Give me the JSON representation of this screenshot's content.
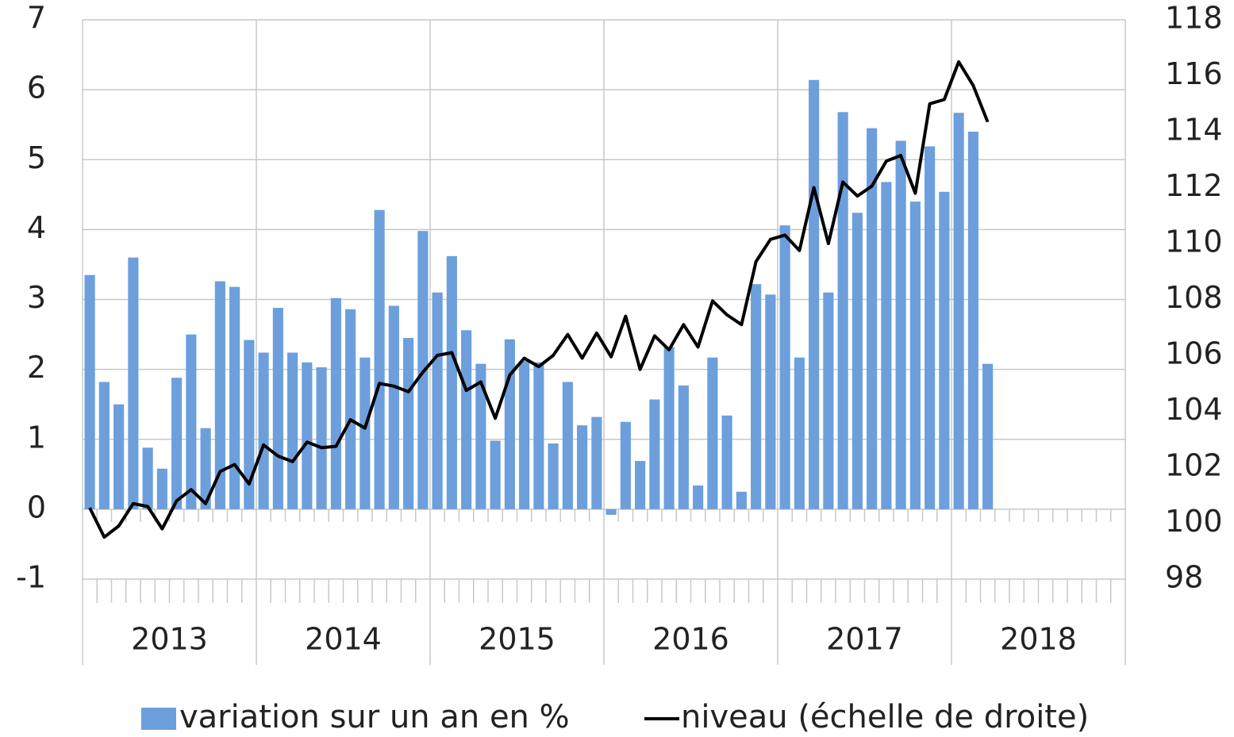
{
  "chart_data": {
    "type": "bar",
    "categories": [
      null,
      null,
      null,
      null,
      null,
      null,
      null,
      null,
      null,
      null,
      null,
      null,
      null,
      null,
      null,
      null,
      null,
      null,
      null,
      null,
      null,
      null,
      null,
      null,
      null,
      null,
      null,
      null,
      null,
      null,
      null,
      null,
      null,
      null,
      null,
      null,
      null,
      null,
      null,
      null,
      null,
      null,
      null,
      null,
      null,
      null,
      null,
      null,
      null,
      null,
      null,
      null,
      null,
      null,
      null,
      null,
      null,
      null,
      null,
      null,
      null,
      null,
      null,
      null,
      null,
      null,
      null,
      null,
      null,
      null,
      null,
      null
    ],
    "x_groups": [
      "2013",
      "2014",
      "2015",
      "2016",
      "2017",
      "2018"
    ],
    "series": [
      {
        "name": "variation sur un an en %",
        "type": "bar",
        "color": "#6c9fdc",
        "values": [
          3.35,
          1.82,
          1.5,
          3.6,
          0.88,
          0.58,
          1.88,
          2.5,
          1.16,
          3.26,
          3.18,
          2.42,
          2.24,
          2.88,
          2.24,
          2.1,
          2.03,
          3.02,
          2.86,
          2.17,
          4.28,
          2.91,
          2.45,
          3.98,
          3.1,
          3.62,
          2.56,
          2.08,
          0.98,
          2.43,
          2.12,
          2.1,
          0.94,
          1.82,
          1.2,
          1.32,
          -0.08,
          1.25,
          0.69,
          1.57,
          2.32,
          1.77,
          0.34,
          2.17,
          1.34,
          0.25,
          3.22,
          3.07,
          4.06,
          2.17,
          6.14,
          3.1,
          5.68,
          4.24,
          5.45,
          4.68,
          5.27,
          4.4,
          5.19,
          4.54,
          5.67,
          5.4,
          2.08,
          null,
          null,
          null,
          null,
          null,
          null,
          null,
          null,
          null
        ]
      },
      {
        "name": "niveau (échelle de droite)",
        "type": "line",
        "axis": "y2",
        "color": "#000000",
        "values": [
          100.55,
          99.5,
          99.9,
          100.7,
          100.6,
          99.8,
          100.8,
          101.2,
          100.7,
          101.85,
          102.1,
          101.4,
          102.8,
          102.4,
          102.2,
          102.9,
          102.7,
          102.75,
          103.7,
          103.4,
          105.0,
          104.9,
          104.7,
          105.4,
          106.0,
          106.1,
          104.75,
          105.05,
          103.75,
          105.3,
          105.9,
          105.6,
          106.0,
          106.75,
          105.9,
          106.8,
          105.95,
          107.4,
          105.5,
          106.7,
          106.2,
          107.1,
          106.3,
          107.95,
          107.45,
          107.1,
          109.35,
          110.15,
          110.3,
          109.75,
          112.0,
          110.0,
          112.2,
          111.7,
          112.05,
          112.95,
          113.15,
          111.8,
          115.0,
          115.15,
          116.5,
          115.65,
          114.35,
          null,
          null,
          null,
          null,
          null,
          null,
          null,
          null,
          null
        ]
      }
    ],
    "ylim": [
      -1,
      7
    ],
    "yticks": [
      -1,
      0,
      1,
      2,
      3,
      4,
      5,
      6,
      7
    ],
    "y2lim": [
      98,
      118
    ],
    "y2ticks": [
      98,
      100,
      102,
      104,
      106,
      108,
      110,
      112,
      114,
      116,
      118
    ],
    "grid": true
  }
}
